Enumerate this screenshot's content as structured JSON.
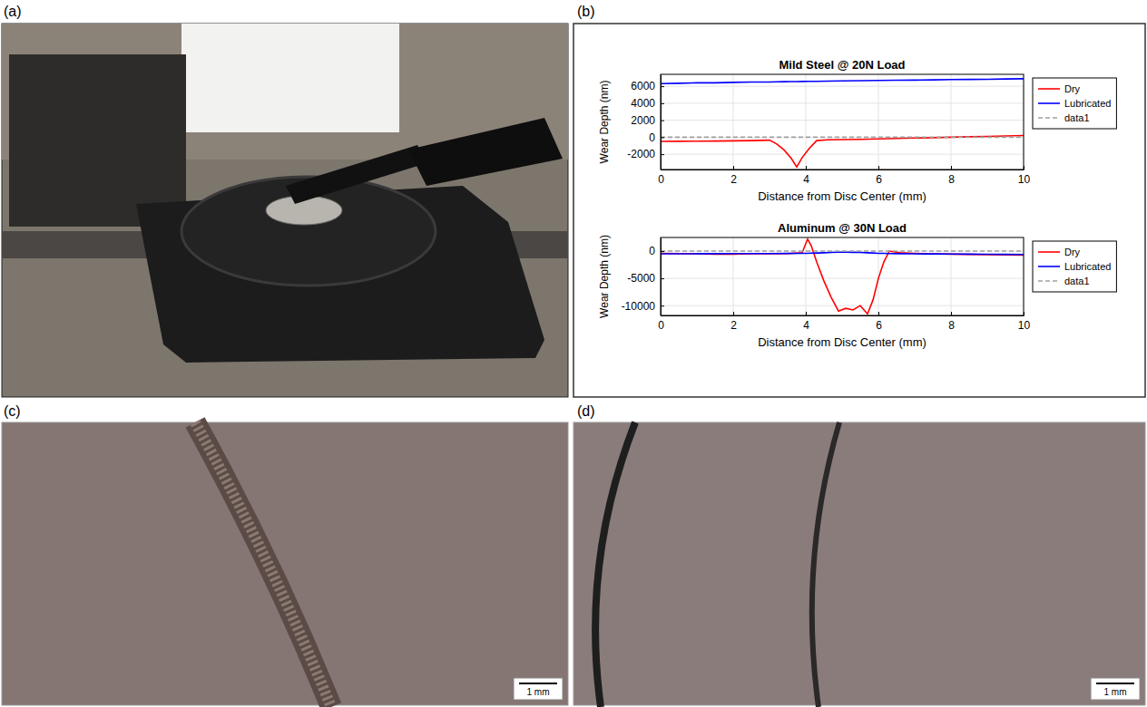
{
  "panels": [
    {
      "label": "(a)"
    },
    {
      "label": "(b)"
    },
    {
      "label": "(c)",
      "scale_bar": "1 mm"
    },
    {
      "label": "(d)",
      "scale_bar": "1 mm"
    }
  ],
  "chart_data": [
    {
      "type": "line",
      "title": "Mild Steel @ 20N Load",
      "xlabel": "Distance from Disc Center (mm)",
      "ylabel": "Wear Depth (nm)",
      "x": [
        0,
        0.5,
        1,
        1.5,
        2,
        2.5,
        3,
        3.2,
        3.4,
        3.6,
        3.75,
        3.9,
        4.1,
        4.3,
        4.6,
        5,
        5.5,
        6,
        6.5,
        7,
        7.5,
        8,
        8.5,
        9,
        9.5,
        10
      ],
      "series": [
        {
          "name": "Dry",
          "color": "#ff0000",
          "line_style": "solid",
          "values": [
            -500,
            -480,
            -470,
            -450,
            -430,
            -400,
            -350,
            -800,
            -1500,
            -2500,
            -3500,
            -2400,
            -1300,
            -400,
            -300,
            -280,
            -250,
            -200,
            -150,
            -100,
            -50,
            0,
            50,
            100,
            150,
            200
          ]
        },
        {
          "name": "Lubricated",
          "color": "#0000ff",
          "line_style": "solid",
          "values": [
            6300,
            6350,
            6400,
            6400,
            6450,
            6500,
            6500,
            6520,
            6530,
            6540,
            6550,
            6560,
            6570,
            6580,
            6600,
            6620,
            6650,
            6680,
            6700,
            6720,
            6750,
            6780,
            6800,
            6820,
            6850,
            6880
          ]
        },
        {
          "name": "data1",
          "color": "#a0a0a0",
          "line_style": "dashed",
          "values": [
            0,
            0,
            0,
            0,
            0,
            0,
            0,
            0,
            0,
            0,
            0,
            0,
            0,
            0,
            0,
            0,
            0,
            0,
            0,
            0,
            0,
            0,
            0,
            0,
            0,
            0
          ]
        }
      ],
      "xlim": [
        0,
        10
      ],
      "xticks": [
        0,
        2,
        4,
        6,
        8,
        10
      ],
      "ylim": [
        -3800,
        7400
      ],
      "yticks": [
        -2000,
        0,
        2000,
        4000,
        6000
      ],
      "grid": true,
      "legend": "right"
    },
    {
      "type": "line",
      "title": "Aluminum @ 30N Load",
      "xlabel": "Distance from Disc Center (mm)",
      "ylabel": "Wear Depth (nm)",
      "x": [
        0,
        0.5,
        1,
        1.5,
        2,
        2.5,
        3,
        3.5,
        3.9,
        4.05,
        4.15,
        4.3,
        4.5,
        4.7,
        4.9,
        5.1,
        5.3,
        5.5,
        5.7,
        5.85,
        6,
        6.15,
        6.3,
        6.6,
        7,
        7.5,
        8,
        8.5,
        9,
        9.5,
        10
      ],
      "series": [
        {
          "name": "Dry",
          "color": "#ff0000",
          "line_style": "solid",
          "values": [
            -400,
            -450,
            -500,
            -550,
            -550,
            -500,
            -500,
            -450,
            -300,
            2200,
            1000,
            -2000,
            -5500,
            -8500,
            -11000,
            -10500,
            -10800,
            -10000,
            -11500,
            -9000,
            -5000,
            -2000,
            0,
            -300,
            -400,
            -500,
            -550,
            -600,
            -650,
            -700,
            -750
          ]
        },
        {
          "name": "Lubricated",
          "color": "#0000ff",
          "line_style": "solid",
          "values": [
            -500,
            -500,
            -480,
            -470,
            -460,
            -450,
            -440,
            -430,
            -420,
            -400,
            -380,
            -350,
            -300,
            -250,
            -200,
            -200,
            -220,
            -250,
            -300,
            -350,
            -400,
            -420,
            -450,
            -480,
            -500,
            -520,
            -540,
            -560,
            -580,
            -600,
            -620
          ]
        },
        {
          "name": "data1",
          "color": "#a0a0a0",
          "line_style": "dashed",
          "values": [
            0,
            0,
            0,
            0,
            0,
            0,
            0,
            0,
            0,
            0,
            0,
            0,
            0,
            0,
            0,
            0,
            0,
            0,
            0,
            0,
            0,
            0,
            0,
            0,
            0,
            0,
            0,
            0,
            0,
            0,
            0
          ]
        }
      ],
      "xlim": [
        0,
        10
      ],
      "xticks": [
        0,
        2,
        4,
        6,
        8,
        10
      ],
      "ylim": [
        -11800,
        2500
      ],
      "yticks": [
        -10000,
        -5000,
        0
      ],
      "grid": true,
      "legend": "right"
    }
  ]
}
